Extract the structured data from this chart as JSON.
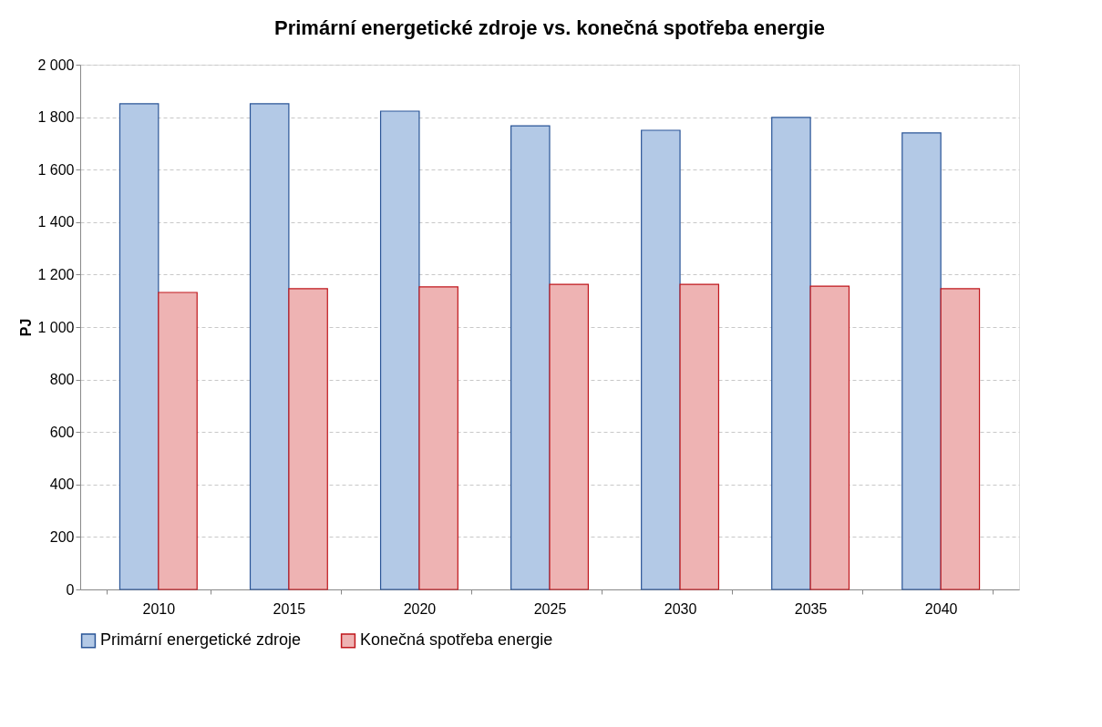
{
  "chart_data": {
    "type": "bar",
    "title": "Primární energetické zdroje vs. konečná spotřeba energie",
    "ylabel": "PJ",
    "categories": [
      "2010",
      "2015",
      "2020",
      "2025",
      "2030",
      "2035",
      "2040"
    ],
    "series": [
      {
        "name": "Primární energetické zdroje",
        "color": "#b3c9e6",
        "values": [
          1851,
          1851,
          1823,
          1767,
          1750,
          1799,
          1740
        ]
      },
      {
        "name": "Konečná spotřeba energie",
        "color": "#eeb3b3",
        "values": [
          1132,
          1146,
          1153,
          1163,
          1163,
          1156,
          1146
        ]
      }
    ],
    "ylim": [
      0,
      2000
    ],
    "yticks": [
      0,
      200,
      400,
      600,
      800,
      {
        "value": 1000,
        "label": "1 000"
      },
      {
        "value": 1200,
        "label": "1 200"
      },
      {
        "value": 1400,
        "label": "1 400"
      },
      {
        "value": 1600,
        "label": "1 600"
      },
      {
        "value": 1800,
        "label": "1 800"
      },
      {
        "value": 2000,
        "label": "2 000"
      }
    ],
    "grid": "y",
    "legend": "bottom"
  }
}
